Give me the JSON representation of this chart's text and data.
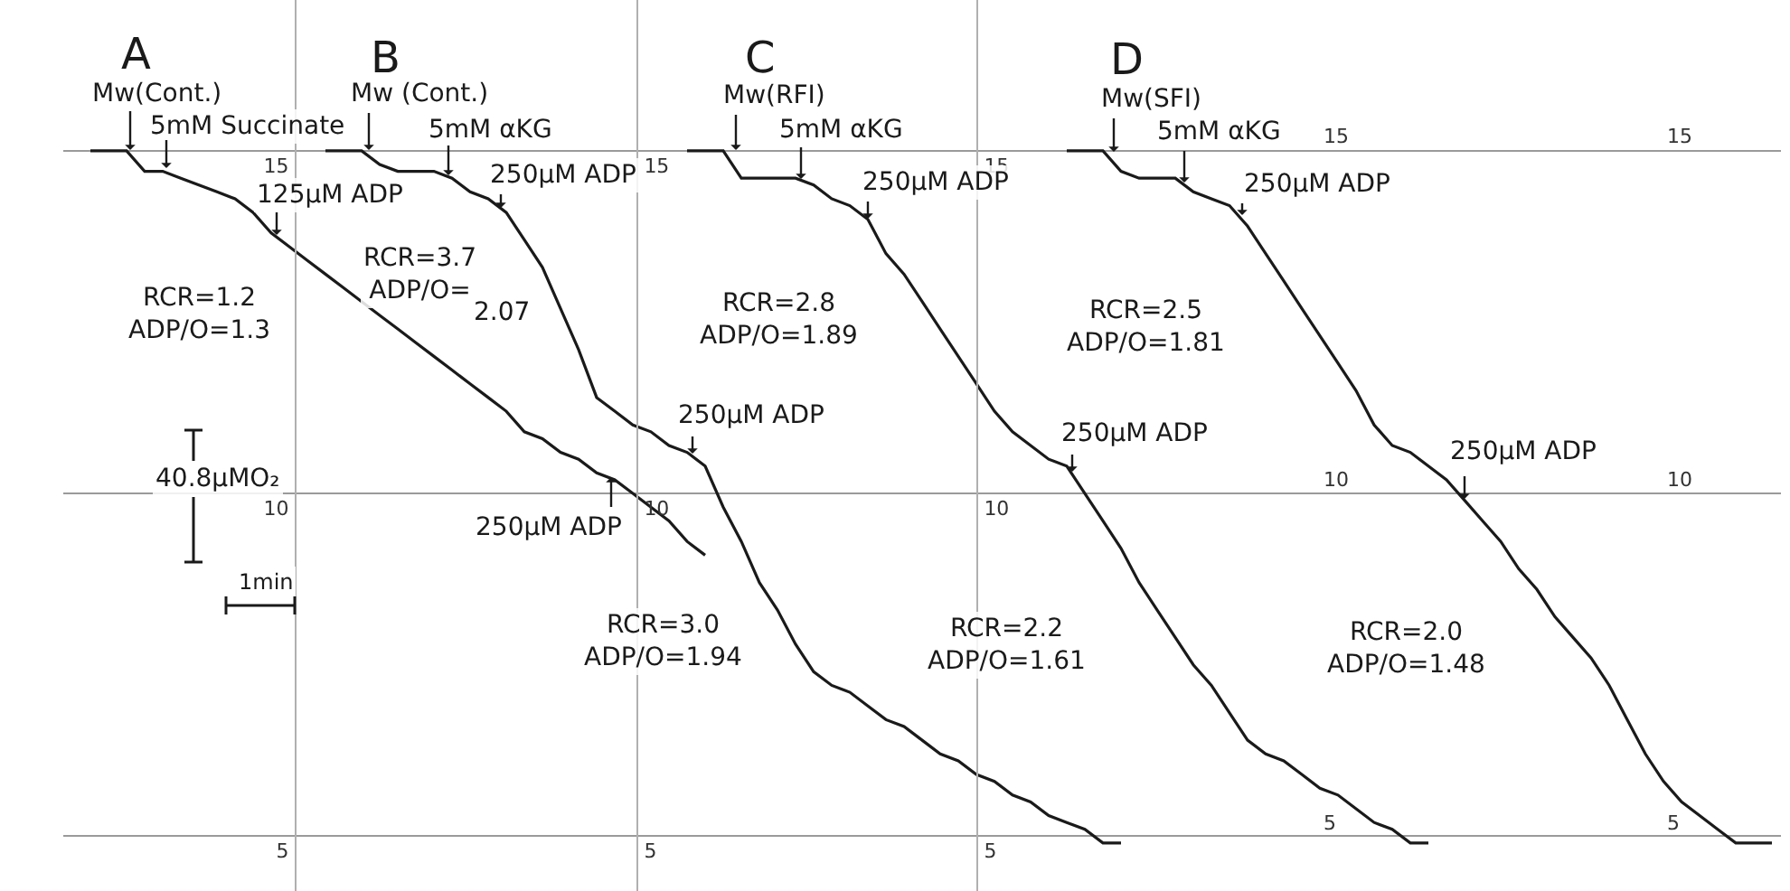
{
  "chart_data": {
    "type": "line",
    "tick_labels": "y",
    "grid": "y",
    "ylim": [
      4.2,
      17.2
    ],
    "yticks": [
      5,
      10,
      15
    ],
    "y2lim": [
      4.2,
      17.2
    ],
    "y2ticks": [
      5,
      10,
      15
    ],
    "y3lim": [
      4.2,
      17.2
    ],
    "y3ticks": [
      5,
      10,
      15
    ],
    "categories": [
      null,
      null,
      null,
      null,
      null,
      null,
      null,
      null,
      null,
      null,
      null,
      null,
      null,
      null,
      null,
      null,
      null,
      null,
      null,
      null,
      null,
      null,
      null,
      null,
      null,
      null,
      null,
      null,
      null,
      null,
      null,
      null,
      null,
      null,
      null,
      null,
      null,
      null,
      null,
      null,
      null,
      null,
      null,
      null,
      null,
      null,
      null,
      null,
      null,
      null,
      null,
      null,
      null,
      null,
      null,
      null,
      null,
      null,
      null,
      null,
      null,
      null,
      null,
      null,
      null,
      null,
      null,
      null,
      null,
      null,
      null,
      null,
      null,
      null,
      null,
      null,
      null,
      null,
      null,
      null,
      null,
      null,
      null,
      null,
      null,
      null,
      null,
      null,
      null,
      null,
      null,
      null,
      null,
      null,
      null
    ],
    "series": [
      {
        "color": "#1a1a1a",
        "values": [
          null,
          15.0,
          15.0,
          15.0,
          14.7,
          14.7,
          14.6,
          14.5,
          14.4,
          14.3,
          14.1,
          13.8,
          13.6,
          13.4,
          13.2,
          13.0,
          12.8,
          12.6,
          12.4,
          12.2,
          12.0,
          11.8,
          11.6,
          11.4,
          11.2,
          10.9,
          10.8,
          10.6,
          10.5,
          10.3,
          10.2,
          10.0,
          9.8,
          9.6,
          9.3,
          9.1,
          null,
          null,
          null,
          null,
          null,
          null,
          null,
          null,
          null,
          null,
          null,
          null,
          null,
          null,
          null,
          null,
          null,
          null,
          null,
          null,
          null,
          null,
          null,
          null,
          null,
          null,
          null,
          null,
          null,
          null,
          null,
          null,
          null,
          null,
          null,
          null,
          null,
          null,
          null,
          null,
          null,
          null,
          null,
          null,
          null,
          null,
          null,
          null,
          null,
          null,
          null,
          null,
          null,
          null,
          null,
          null,
          null,
          null,
          null
        ]
      },
      {
        "color": "#1a1a1a",
        "values": [
          null,
          null,
          null,
          null,
          null,
          null,
          null,
          null,
          null,
          null,
          null,
          null,
          null,
          null,
          15.0,
          15.0,
          15.0,
          14.8,
          14.7,
          14.7,
          14.7,
          14.6,
          14.4,
          14.3,
          14.1,
          13.7,
          13.3,
          12.7,
          12.1,
          11.4,
          11.2,
          11.0,
          10.9,
          10.7,
          10.6,
          10.4,
          9.8,
          9.3,
          8.7,
          8.3,
          7.8,
          7.4,
          7.2,
          7.1,
          6.9,
          6.7,
          6.6,
          6.4,
          6.2,
          6.1,
          5.9,
          5.8,
          5.6,
          5.5,
          5.3,
          5.2,
          5.1,
          4.9,
          4.9,
          null,
          null,
          null,
          null,
          null,
          null,
          null,
          null,
          null,
          null,
          null,
          null,
          null,
          null,
          null,
          null,
          null,
          null,
          null,
          null,
          null,
          null,
          null,
          null,
          null,
          null,
          null,
          null,
          null,
          null,
          null,
          null,
          null,
          null,
          null,
          null
        ]
      },
      {
        "color": "#1a1a1a",
        "values": [
          null,
          null,
          null,
          null,
          null,
          null,
          null,
          null,
          null,
          null,
          null,
          null,
          null,
          null,
          null,
          null,
          null,
          null,
          null,
          null,
          null,
          null,
          null,
          null,
          null,
          null,
          null,
          null,
          null,
          null,
          null,
          null,
          null,
          null,
          15.0,
          15.0,
          15.0,
          14.6,
          14.6,
          14.6,
          14.6,
          14.5,
          14.3,
          14.2,
          14.0,
          13.5,
          13.2,
          12.8,
          12.4,
          12.0,
          11.6,
          11.2,
          10.9,
          10.7,
          10.5,
          10.4,
          10.0,
          9.6,
          9.2,
          8.7,
          8.3,
          7.9,
          7.5,
          7.2,
          6.8,
          6.4,
          6.2,
          6.1,
          5.9,
          5.7,
          5.6,
          5.4,
          5.2,
          5.1,
          4.9,
          4.9,
          null,
          null,
          null,
          null,
          null,
          null,
          null,
          null,
          null,
          null,
          null,
          null,
          null,
          null,
          null,
          null,
          null,
          null,
          null
        ]
      },
      {
        "color": "#1a1a1a",
        "values": [
          null,
          null,
          null,
          null,
          null,
          null,
          null,
          null,
          null,
          null,
          null,
          null,
          null,
          null,
          null,
          null,
          null,
          null,
          null,
          null,
          null,
          null,
          null,
          null,
          null,
          null,
          null,
          null,
          null,
          null,
          null,
          null,
          null,
          null,
          null,
          null,
          null,
          null,
          null,
          null,
          null,
          null,
          null,
          null,
          null,
          null,
          null,
          null,
          null,
          null,
          null,
          null,
          null,
          null,
          null,
          15.0,
          15.0,
          15.0,
          14.7,
          14.6,
          14.6,
          14.6,
          14.4,
          14.3,
          14.2,
          13.9,
          13.5,
          13.1,
          12.7,
          12.3,
          11.9,
          11.5,
          11.0,
          10.7,
          10.6,
          10.4,
          10.2,
          9.9,
          9.6,
          9.3,
          8.9,
          8.6,
          8.2,
          7.9,
          7.6,
          7.2,
          6.7,
          6.2,
          5.8,
          5.5,
          5.3,
          5.1,
          4.9,
          4.9,
          4.9
        ]
      }
    ],
    "annotations": [
      "A",
      "B",
      "C",
      "D",
      "Mw(Cont.)",
      "5mM Succinate",
      "125μM ADP",
      "250μM ADP",
      "RCR=1.2\nADP/O=1.3",
      "Mw (Cont.)",
      "5mM αKG",
      "250μM ADP",
      "250μM ADP",
      "RCR=3.7\nADP/O=",
      "2.07",
      "RCR=3.0\nADP/O=1.94",
      "Mw(RFI)",
      "5mM αKG",
      "250μM ADP",
      "250μM ADP",
      "RCR=2.8\nADP/O=1.89",
      "RCR=2.2\nADP/O=1.61",
      "Mw(SFI)",
      "5mM αKG",
      "250μM ADP",
      "250μM ADP",
      "RCR=2.5\nADP/O=1.81",
      "RCR=2.0\nADP/O=1.48",
      "40.8μMO₂",
      "1min",
      "15",
      "10",
      "5",
      "15",
      "10",
      "5"
    ]
  }
}
